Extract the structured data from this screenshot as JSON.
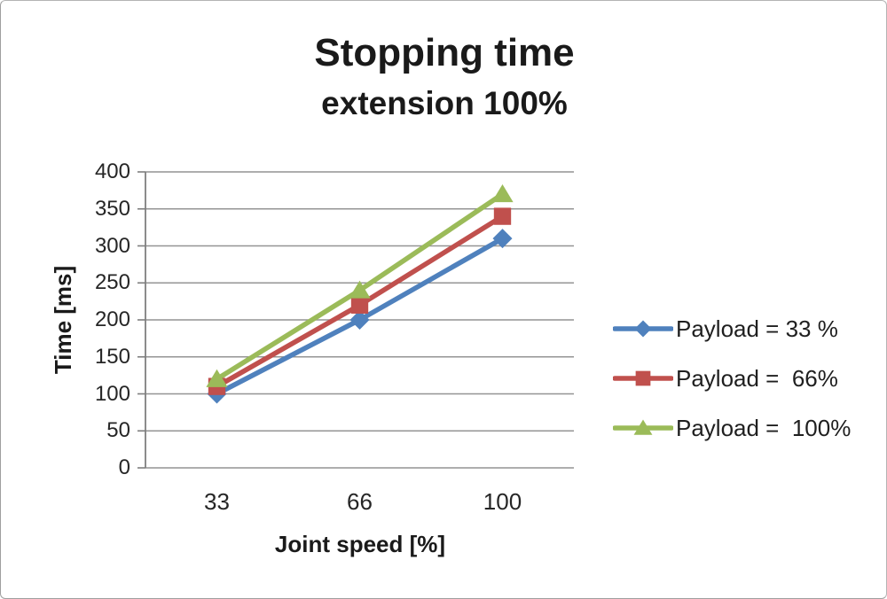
{
  "chart_data": {
    "type": "line",
    "title": "Stopping time",
    "subtitle": "extension 100%",
    "xlabel": "Joint speed [%]",
    "ylabel": "Time [ms]",
    "categories": [
      "33",
      "66",
      "100"
    ],
    "series": [
      {
        "name": "Payload = 33 %",
        "marker": "diamond",
        "color": "#4F81BD",
        "values": [
          100,
          200,
          310
        ]
      },
      {
        "name": "Payload =  66%",
        "marker": "square",
        "color": "#C0504D",
        "values": [
          110,
          220,
          340
        ]
      },
      {
        "name": "Payload =  100%",
        "marker": "triangle",
        "color": "#9BBB59",
        "values": [
          120,
          240,
          370
        ]
      }
    ],
    "ylim": [
      0,
      400
    ],
    "ytick_step": 50,
    "yticks": [
      400,
      350,
      300,
      250,
      200,
      150,
      100,
      50,
      0
    ],
    "grid": true,
    "legend_position": "right",
    "gridline_color": "#949494",
    "axis_color": "#7f7f7f",
    "text_color": "#1a1a1a",
    "background_color": "#ffffff"
  }
}
